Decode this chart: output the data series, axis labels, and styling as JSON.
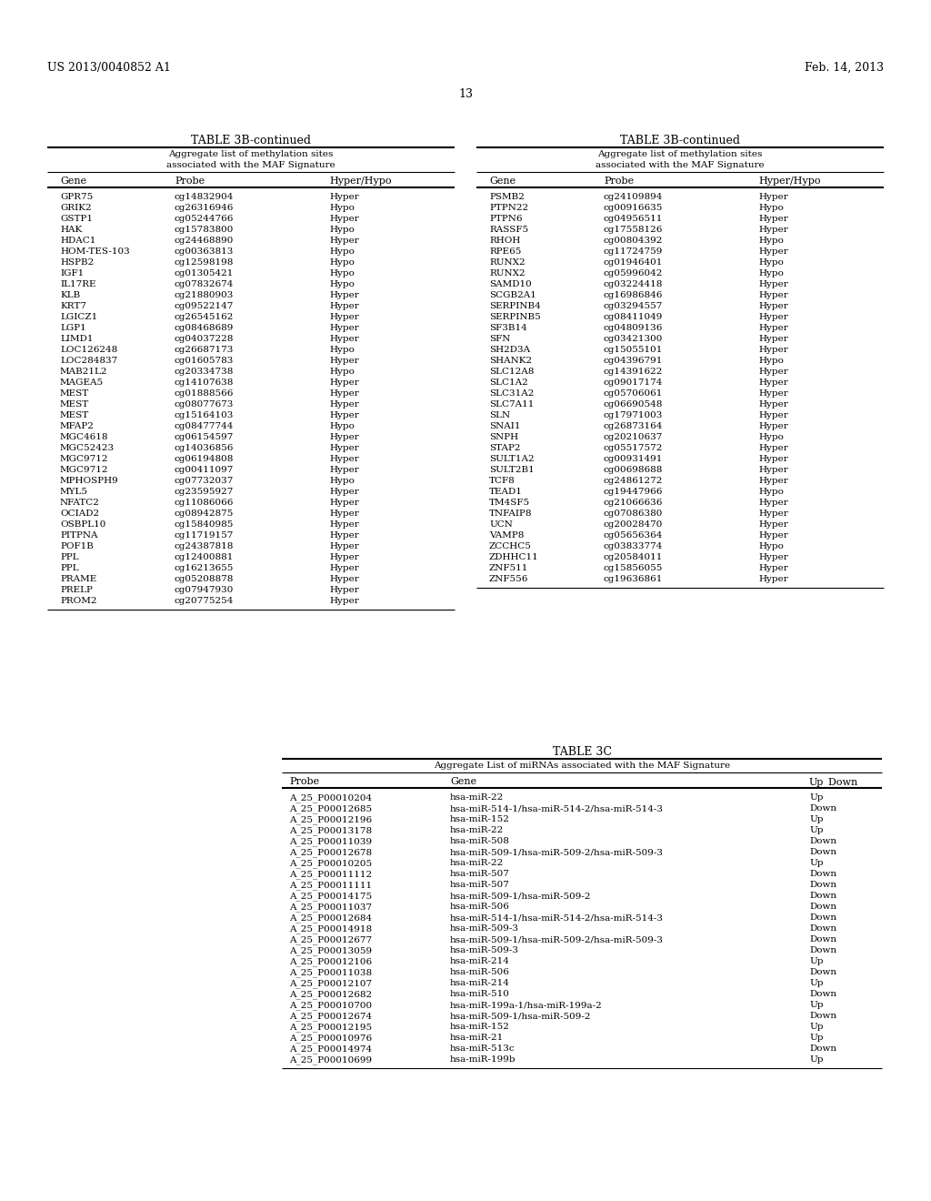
{
  "header_left": "US 2013/0040852 A1",
  "header_right": "Feb. 14, 2013",
  "page_number": "13",
  "table3b_left_title": "TABLE 3B-continued",
  "table3b_left_subtitle1": "Aggregate list of methylation sites",
  "table3b_left_subtitle2": "associated with the MAF Signature",
  "table3b_left_cols": [
    "Gene",
    "Probe",
    "Hyper/Hypo"
  ],
  "table3b_left_data": [
    [
      "GPR75",
      "cg14832904",
      "Hyper"
    ],
    [
      "GRIK2",
      "cg26316946",
      "Hypo"
    ],
    [
      "GSTP1",
      "cg05244766",
      "Hyper"
    ],
    [
      "HAK",
      "cg15783800",
      "Hypo"
    ],
    [
      "HDAC1",
      "cg24468890",
      "Hyper"
    ],
    [
      "HOM-TES-103",
      "cg00363813",
      "Hypo"
    ],
    [
      "HSPB2",
      "cg12598198",
      "Hypo"
    ],
    [
      "IGF1",
      "cg01305421",
      "Hypo"
    ],
    [
      "IL17RE",
      "cg07832674",
      "Hypo"
    ],
    [
      "KLB",
      "cg21880903",
      "Hyper"
    ],
    [
      "KRT7",
      "cg09522147",
      "Hyper"
    ],
    [
      "LGICZ1",
      "cg26545162",
      "Hyper"
    ],
    [
      "LGP1",
      "cg08468689",
      "Hyper"
    ],
    [
      "LIMD1",
      "cg04037228",
      "Hyper"
    ],
    [
      "LOC126248",
      "cg26687173",
      "Hypo"
    ],
    [
      "LOC284837",
      "cg01605783",
      "Hyper"
    ],
    [
      "MAB21L2",
      "cg20334738",
      "Hypo"
    ],
    [
      "MAGEA5",
      "cg14107638",
      "Hyper"
    ],
    [
      "MEST",
      "cg01888566",
      "Hyper"
    ],
    [
      "MEST",
      "cg08077673",
      "Hyper"
    ],
    [
      "MEST",
      "cg15164103",
      "Hyper"
    ],
    [
      "MFAP2",
      "cg08477744",
      "Hypo"
    ],
    [
      "MGC4618",
      "cg06154597",
      "Hyper"
    ],
    [
      "MGC52423",
      "cg14036856",
      "Hyper"
    ],
    [
      "MGC9712",
      "cg06194808",
      "Hyper"
    ],
    [
      "MGC9712",
      "cg00411097",
      "Hyper"
    ],
    [
      "MPHOSPH9",
      "cg07732037",
      "Hypo"
    ],
    [
      "MYL5",
      "cg23595927",
      "Hyper"
    ],
    [
      "NFATC2",
      "cg11086066",
      "Hyper"
    ],
    [
      "OCIAD2",
      "cg08942875",
      "Hyper"
    ],
    [
      "OSBPL10",
      "cg15840985",
      "Hyper"
    ],
    [
      "PITPNA",
      "cg11719157",
      "Hyper"
    ],
    [
      "POF1B",
      "cg24387818",
      "Hyper"
    ],
    [
      "PPL",
      "cg12400881",
      "Hyper"
    ],
    [
      "PPL",
      "cg16213655",
      "Hyper"
    ],
    [
      "PRAME",
      "cg05208878",
      "Hyper"
    ],
    [
      "PRELP",
      "cg07947930",
      "Hyper"
    ],
    [
      "PROM2",
      "cg20775254",
      "Hyper"
    ]
  ],
  "table3b_right_title": "TABLE 3B-continued",
  "table3b_right_subtitle1": "Aggregate list of methylation sites",
  "table3b_right_subtitle2": "associated with the MAF Signature",
  "table3b_right_cols": [
    "Gene",
    "Probe",
    "Hyper/Hypo"
  ],
  "table3b_right_data": [
    [
      "PSMB2",
      "cg24109894",
      "Hyper"
    ],
    [
      "PTPN22",
      "cg00916635",
      "Hypo"
    ],
    [
      "PTPN6",
      "cg04956511",
      "Hyper"
    ],
    [
      "RASSF5",
      "cg17558126",
      "Hyper"
    ],
    [
      "RHOH",
      "cg00804392",
      "Hypo"
    ],
    [
      "RPE65",
      "cg11724759",
      "Hyper"
    ],
    [
      "RUNX2",
      "cg01946401",
      "Hypo"
    ],
    [
      "RUNX2",
      "cg05996042",
      "Hypo"
    ],
    [
      "SAMD10",
      "cg03224418",
      "Hyper"
    ],
    [
      "SCGB2A1",
      "cg16986846",
      "Hyper"
    ],
    [
      "SERPINB4",
      "cg03294557",
      "Hyper"
    ],
    [
      "SERPINB5",
      "cg08411049",
      "Hyper"
    ],
    [
      "SF3B14",
      "cg04809136",
      "Hyper"
    ],
    [
      "SFN",
      "cg03421300",
      "Hyper"
    ],
    [
      "SH2D3A",
      "cg15055101",
      "Hyper"
    ],
    [
      "SHANK2",
      "cg04396791",
      "Hypo"
    ],
    [
      "SLC12A8",
      "cg14391622",
      "Hyper"
    ],
    [
      "SLC1A2",
      "cg09017174",
      "Hyper"
    ],
    [
      "SLC31A2",
      "cg05706061",
      "Hyper"
    ],
    [
      "SLC7A11",
      "cg06690548",
      "Hyper"
    ],
    [
      "SLN",
      "cg17971003",
      "Hyper"
    ],
    [
      "SNAI1",
      "cg26873164",
      "Hyper"
    ],
    [
      "SNPH",
      "cg20210637",
      "Hypo"
    ],
    [
      "STAP2",
      "cg05517572",
      "Hyper"
    ],
    [
      "SULT1A2",
      "cg00931491",
      "Hyper"
    ],
    [
      "SULT2B1",
      "cg00698688",
      "Hyper"
    ],
    [
      "TCF8",
      "cg24861272",
      "Hyper"
    ],
    [
      "TEAD1",
      "cg19447966",
      "Hypo"
    ],
    [
      "TM4SF5",
      "cg21066636",
      "Hyper"
    ],
    [
      "TNFAIP8",
      "cg07086380",
      "Hyper"
    ],
    [
      "UCN",
      "cg20028470",
      "Hyper"
    ],
    [
      "VAMP8",
      "cg05656364",
      "Hyper"
    ],
    [
      "ZCCHC5",
      "cg03833774",
      "Hypo"
    ],
    [
      "ZDHHC11",
      "cg20584011",
      "Hyper"
    ],
    [
      "ZNF511",
      "cg15856055",
      "Hyper"
    ],
    [
      "ZNF556",
      "cg19636861",
      "Hyper"
    ]
  ],
  "table3c_title": "TABLE 3C",
  "table3c_subtitle": "Aggregate List of miRNAs associated with the MAF Signature",
  "table3c_cols": [
    "Probe",
    "Gene",
    "Up_Down"
  ],
  "table3c_data": [
    [
      "A_25_P00010204",
      "hsa-miR-22",
      "Up"
    ],
    [
      "A_25_P00012685",
      "hsa-miR-514-1/hsa-miR-514-2/hsa-miR-514-3",
      "Down"
    ],
    [
      "A_25_P00012196",
      "hsa-miR-152",
      "Up"
    ],
    [
      "A_25_P00013178",
      "hsa-miR-22",
      "Up"
    ],
    [
      "A_25_P00011039",
      "hsa-miR-508",
      "Down"
    ],
    [
      "A_25_P00012678",
      "hsa-miR-509-1/hsa-miR-509-2/hsa-miR-509-3",
      "Down"
    ],
    [
      "A_25_P00010205",
      "hsa-miR-22",
      "Up"
    ],
    [
      "A_25_P00011112",
      "hsa-miR-507",
      "Down"
    ],
    [
      "A_25_P00011111",
      "hsa-miR-507",
      "Down"
    ],
    [
      "A_25_P00014175",
      "hsa-miR-509-1/hsa-miR-509-2",
      "Down"
    ],
    [
      "A_25_P00011037",
      "hsa-miR-506",
      "Down"
    ],
    [
      "A_25_P00012684",
      "hsa-miR-514-1/hsa-miR-514-2/hsa-miR-514-3",
      "Down"
    ],
    [
      "A_25_P00014918",
      "hsa-miR-509-3",
      "Down"
    ],
    [
      "A_25_P00012677",
      "hsa-miR-509-1/hsa-miR-509-2/hsa-miR-509-3",
      "Down"
    ],
    [
      "A_25_P00013059",
      "hsa-miR-509-3",
      "Down"
    ],
    [
      "A_25_P00012106",
      "hsa-miR-214",
      "Up"
    ],
    [
      "A_25_P00011038",
      "hsa-miR-506",
      "Down"
    ],
    [
      "A_25_P00012107",
      "hsa-miR-214",
      "Up"
    ],
    [
      "A_25_P00012682",
      "hsa-miR-510",
      "Down"
    ],
    [
      "A_25_P00010700",
      "hsa-miR-199a-1/hsa-miR-199a-2",
      "Up"
    ],
    [
      "A_25_P00012674",
      "hsa-miR-509-1/hsa-miR-509-2",
      "Down"
    ],
    [
      "A_25_P00012195",
      "hsa-miR-152",
      "Up"
    ],
    [
      "A_25_P00010976",
      "hsa-miR-21",
      "Up"
    ],
    [
      "A_25_P00014974",
      "hsa-miR-513c",
      "Down"
    ],
    [
      "A_25_P00010699",
      "hsa-miR-199b",
      "Up"
    ]
  ]
}
